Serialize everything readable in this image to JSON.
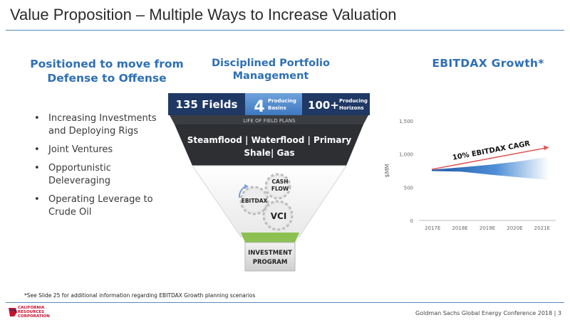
{
  "slide": {
    "title": "Value Proposition – Multiple Ways to Increase Valuation",
    "footnote": "*See Slide 25 for additional information regarding EBITDAX Growth planning scenarios",
    "conference": "Goldman Sachs Global Energy Conference 2018",
    "page_number": "3",
    "logo_lines": [
      "CALIFORNIA",
      "RESOURCES",
      "CORPORATION"
    ]
  },
  "left": {
    "heading": "Positioned to move from Defense to Offense",
    "bullets": [
      "Increasing Investments and Deploying Rigs",
      "Joint Ventures",
      "Opportunistic Deleveraging",
      "Operating Leverage to Crude Oil"
    ]
  },
  "middle": {
    "heading": "Disciplined Portfolio Management",
    "fields": "135 Fields",
    "basins_number": "4",
    "basins_label": "Producing Basins",
    "horizons_number": "100+",
    "horizons_label": "Producing Horizons",
    "life_of_field": "LIFE OF FIELD PLANS",
    "methods_line1": "Steamflood | Waterflood | Primary",
    "methods_line2": "Shale| Gas",
    "gear_cash_flow": "CASH FLOW",
    "gear_ebitdax": "EBITDAX",
    "gear_vci": "VCI",
    "investment_program": "INVESTMENT PROGRAM"
  },
  "right": {
    "heading": "EBITDAX Growth*"
  },
  "colors": {
    "accent_blue": "#2e6fb5",
    "navy": "#1f3864",
    "dark_band": "#2d2f33",
    "green": "#8cc152",
    "cagr_red": "#e05555"
  },
  "chart_data": {
    "type": "area",
    "ylabel": "$MM",
    "xlabel": "",
    "categories": [
      "2017E",
      "2018E",
      "2019E",
      "2020E",
      "2021E"
    ],
    "yticks": [
      "0",
      "500",
      "1,000",
      "1,500"
    ],
    "ylim": [
      0,
      1500
    ],
    "series": [
      {
        "lower": [
          745,
          735,
          690,
          650,
          610
        ],
        "upper": [
          765,
          800,
          840,
          890,
          960
        ]
      }
    ],
    "cagr_label": "10% EBITDAX CAGR",
    "cagr_line": [
      770,
      1100
    ],
    "grid": false
  }
}
